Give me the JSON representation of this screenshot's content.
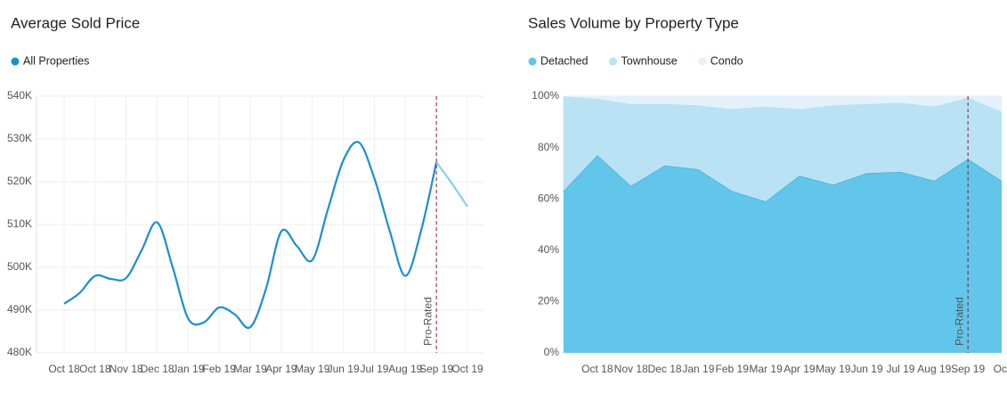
{
  "chart_data": [
    {
      "type": "line",
      "title": "Average Sold Price",
      "categories": [
        "Oct 18",
        null,
        "Oct 18",
        null,
        "Nov 18",
        null,
        "Dec 18",
        null,
        "Jan 19",
        null,
        "Feb 19",
        null,
        "Mar 19",
        null,
        "Apr 19",
        null,
        "May 19",
        null,
        "Jun 19",
        null,
        "Jul 19",
        null,
        "Aug 19",
        null,
        "Sep 19",
        null,
        "Oct 19"
      ],
      "series": [
        {
          "name": "All Properties",
          "color": "#1a8fd0",
          "values": [
            491.5,
            494,
            498,
            497.3,
            497.5,
            504,
            510.5,
            500,
            488,
            487.1,
            490.6,
            489,
            486,
            494.8,
            508.4,
            505,
            501.7,
            513.5,
            525,
            529.2,
            520.8,
            508.4,
            498,
            508.4,
            524.6,
            519.6,
            514.2
          ]
        }
      ],
      "ylim": [
        480,
        540
      ],
      "yticks": [
        {
          "value": 480,
          "label": "480K"
        },
        {
          "value": 490,
          "label": "490K"
        },
        {
          "value": 500,
          "label": "500K"
        },
        {
          "value": 510,
          "label": "510K"
        },
        {
          "value": 520,
          "label": "520K"
        },
        {
          "value": 530,
          "label": "530K"
        },
        {
          "value": 540,
          "label": "540K"
        }
      ],
      "grid": true,
      "annotation": {
        "label": "Pro-Rated",
        "at": "Sep 19",
        "color": "#86d0ef",
        "line_color": "#8b1c3a"
      }
    },
    {
      "type": "area",
      "title": "Sales Volume by Property Type",
      "categories": [
        null,
        "Oct 18",
        "Nov 18",
        "Dec 18",
        "Jan 19",
        "Feb 19",
        "Mar 19",
        "Apr 19",
        "May 19",
        "Jun 19",
        "Jul 19",
        "Aug 19",
        "Sep 19",
        "Oct"
      ],
      "series": [
        {
          "name": "Detached",
          "color": "#62c5ea",
          "line_color": "#2ea6d6",
          "values": [
            63,
            77,
            65,
            73,
            71.5,
            63,
            59,
            69,
            65.5,
            70,
            70.5,
            67,
            75.5,
            67
          ]
        },
        {
          "name": "Townhouse",
          "color": "#b9e2f4",
          "values": [
            37,
            22,
            32,
            24,
            25,
            32,
            37,
            26,
            31,
            27,
            27,
            29,
            24,
            27
          ]
        },
        {
          "name": "Condo",
          "color": "#e3f2fa",
          "values": [
            0,
            1,
            3,
            3,
            3.5,
            5,
            4,
            5,
            3.5,
            3,
            2.5,
            4,
            0.5,
            6
          ]
        }
      ],
      "stacked": true,
      "ylim": [
        0,
        100
      ],
      "yticks": [
        {
          "value": 0,
          "label": "0%"
        },
        {
          "value": 20,
          "label": "20%"
        },
        {
          "value": 40,
          "label": "40%"
        },
        {
          "value": 60,
          "label": "60%"
        },
        {
          "value": 80,
          "label": "80%"
        },
        {
          "value": 100,
          "label": "100%"
        }
      ],
      "grid": true,
      "annotation": {
        "label": "Pro-Rated",
        "at": "Sep 19",
        "line_color": "#8b1c3a"
      }
    }
  ]
}
